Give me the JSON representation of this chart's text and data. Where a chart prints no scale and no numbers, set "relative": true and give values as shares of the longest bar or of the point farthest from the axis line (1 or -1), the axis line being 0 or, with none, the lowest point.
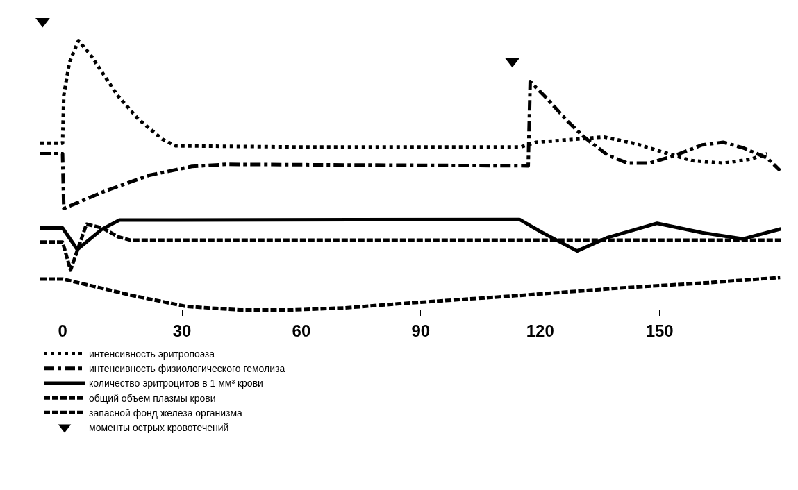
{
  "chart_data": {
    "type": "line",
    "relative": true,
    "xlim": [
      -5.6,
      180.6
    ],
    "xticks": [
      0,
      30,
      60,
      90,
      120,
      150
    ],
    "grid": false,
    "legend": "bottom",
    "tick_labels": "x",
    "series": [
      {
        "name": "интенсивность эритропоэза",
        "color": "#000000",
        "line_style": "dotted",
        "x": [
          -5.6,
          0,
          0.3,
          1.7,
          4,
          7,
          13.8,
          19,
          25,
          28.4,
          60,
          115,
          119,
          136,
          144,
          151,
          158,
          166,
          173,
          177
        ],
        "values": [
          0.586,
          0.586,
          0.748,
          0.859,
          0.934,
          0.886,
          0.748,
          0.668,
          0.6,
          0.577,
          0.573,
          0.573,
          0.589,
          0.607,
          0.584,
          0.555,
          0.527,
          0.518,
          0.532,
          0.55
        ]
      },
      {
        "name": "интенсивность физиологического гемолиза",
        "color": "#000000",
        "line_style": "dashdot",
        "x": [
          -5.6,
          0,
          0.3,
          11,
          21.8,
          32.5,
          41,
          117,
          117.5,
          121.8,
          127,
          131,
          137,
          142,
          147.5,
          154,
          160.7,
          166,
          171,
          177,
          180.3
        ],
        "values": [
          0.55,
          0.55,
          0.364,
          0.425,
          0.477,
          0.507,
          0.514,
          0.509,
          0.795,
          0.736,
          0.659,
          0.607,
          0.545,
          0.518,
          0.518,
          0.545,
          0.58,
          0.589,
          0.57,
          0.536,
          0.493
        ]
      },
      {
        "name": "количество эритроцитов в 1 мм³ крови",
        "color": "#000000",
        "line_style": "solid",
        "x": [
          -5.6,
          0,
          3.7,
          9.8,
          14.3,
          114.8,
          120.6,
          129.3,
          137,
          149.4,
          160.7,
          171,
          180.5
        ],
        "values": [
          0.298,
          0.298,
          0.225,
          0.293,
          0.325,
          0.327,
          0.282,
          0.22,
          0.266,
          0.314,
          0.282,
          0.261,
          0.295
        ]
      },
      {
        "name": "общий объем плазмы крови",
        "color": "#000000",
        "line_style": "dashed",
        "x": [
          -5.6,
          0,
          2,
          6,
          10,
          14,
          17,
          180.5
        ],
        "values": [
          0.25,
          0.25,
          0.155,
          0.311,
          0.298,
          0.268,
          0.257,
          0.257
        ]
      },
      {
        "name": "запасной фонд железа организма",
        "color": "#000000",
        "line_style": "dashed",
        "x": [
          -5.6,
          0,
          17.8,
          31,
          44.5,
          57.8,
          71,
          84.6,
          113.8,
          140.7,
          160.7,
          180.3
        ],
        "values": [
          0.125,
          0.125,
          0.068,
          0.032,
          0.02,
          0.02,
          0.027,
          0.041,
          0.068,
          0.095,
          0.111,
          0.13
        ]
      },
      {
        "name": "моменты острых кровотечений",
        "type": "scatter",
        "marker": "triangle",
        "color": "#000000",
        "x": [
          -5,
          113
        ],
        "values": [
          1,
          0.864
        ]
      }
    ]
  }
}
